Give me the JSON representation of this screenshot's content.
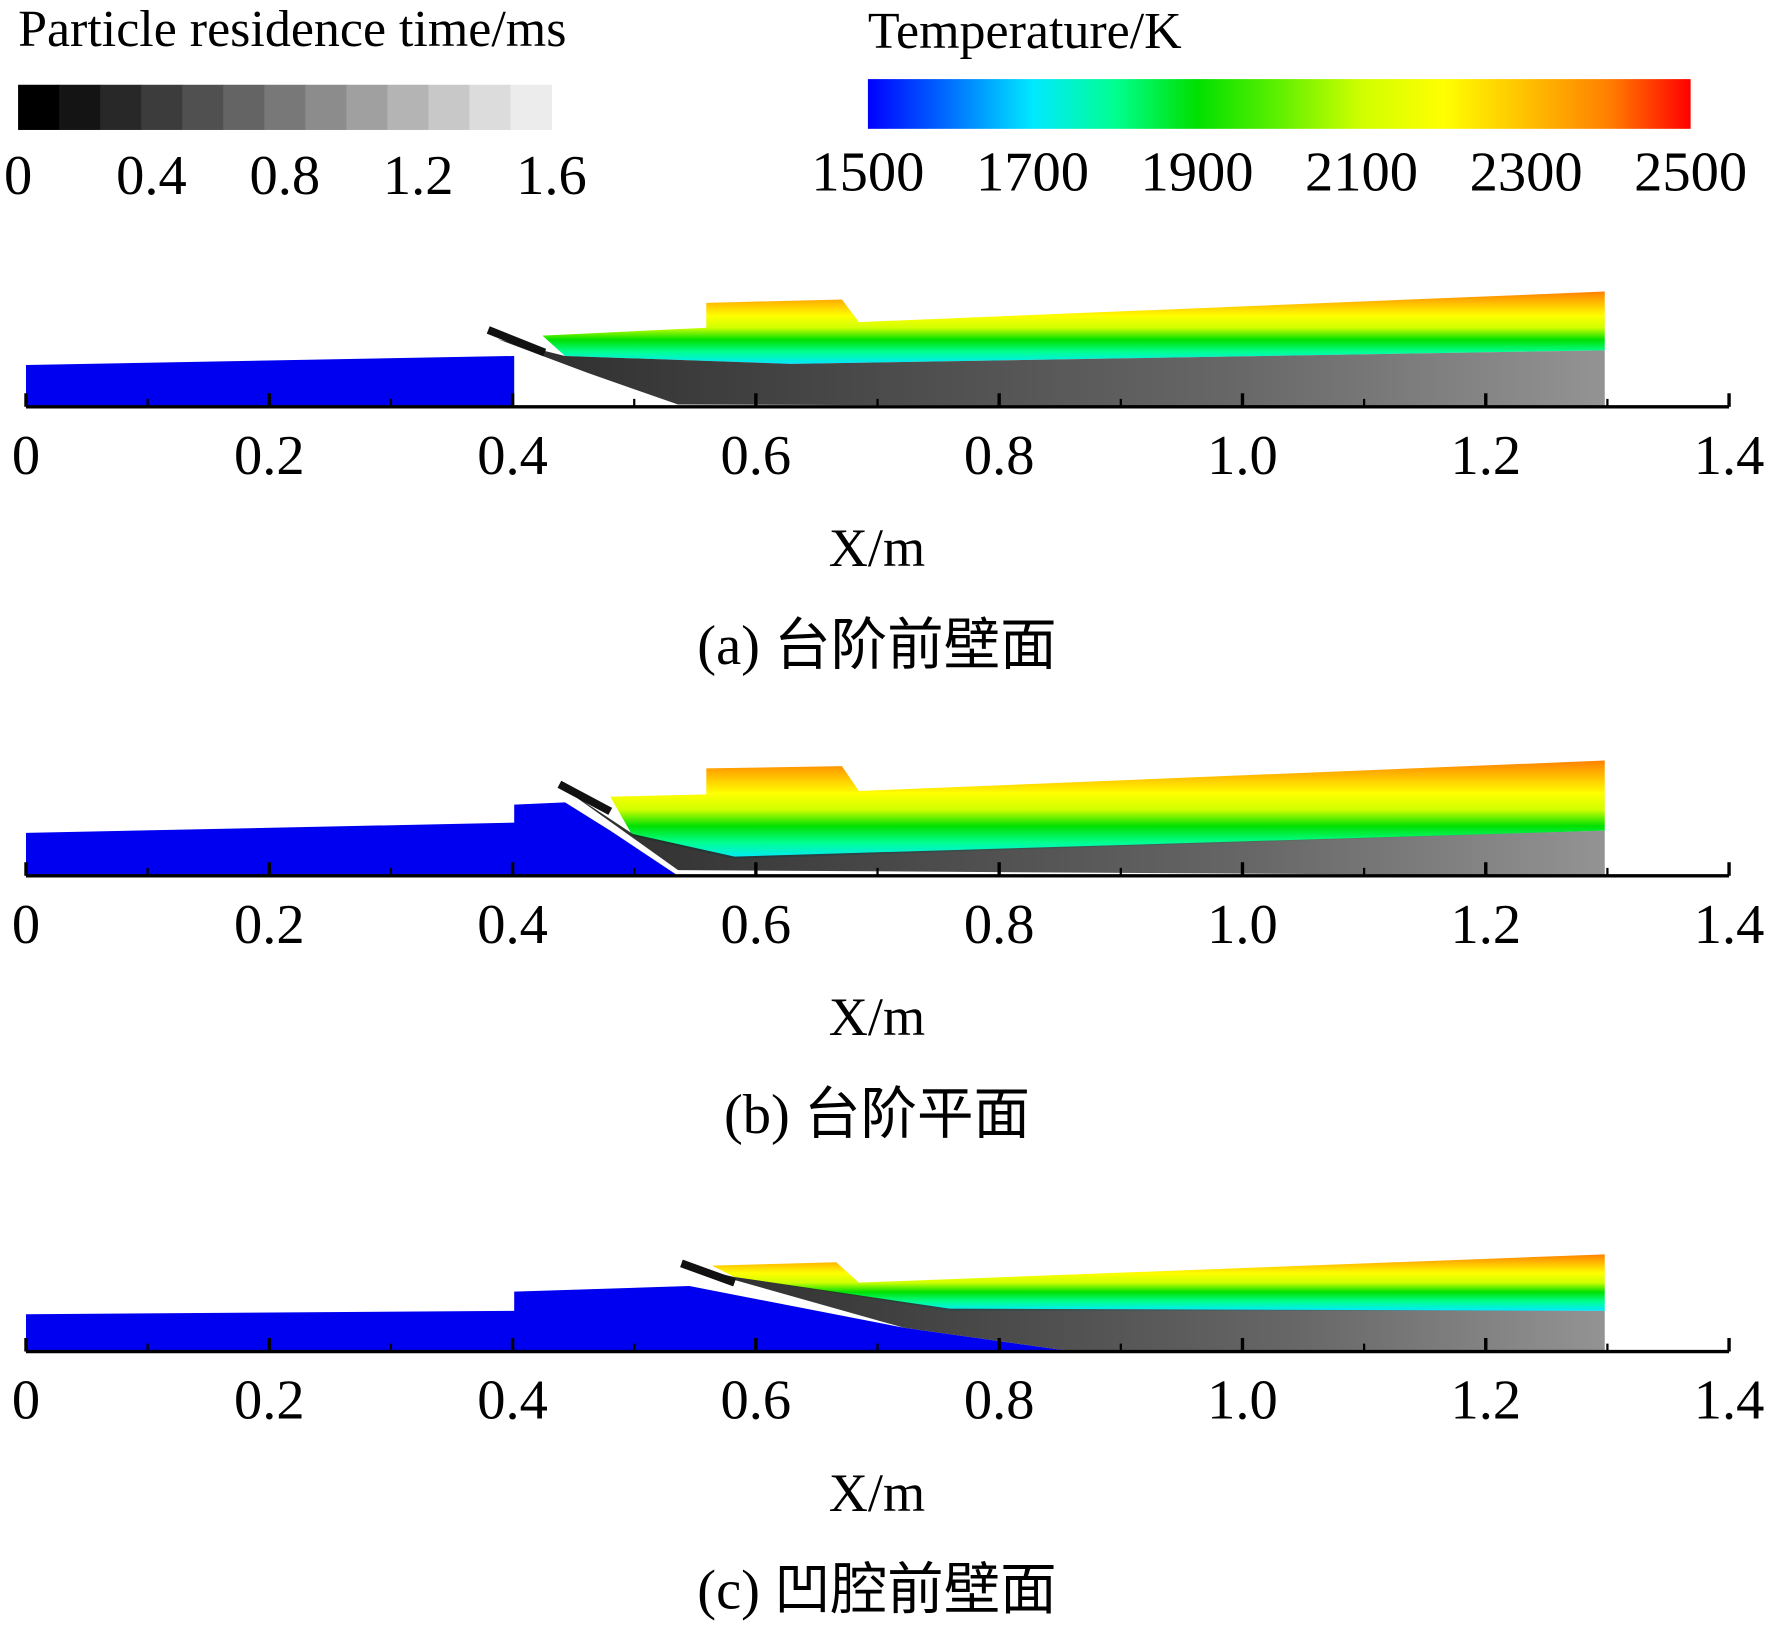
{
  "colorbars": [
    {
      "title": "Particle residence time/ms",
      "lim": [
        0,
        1.6
      ],
      "ticks": [
        0,
        0.4,
        0.8,
        1.2,
        1.6
      ],
      "colors": [
        "#000000",
        "#141414",
        "#282828",
        "#3c3c3c",
        "#505050",
        "#646464",
        "#787878",
        "#8c8c8c",
        "#a0a0a0",
        "#b4b4b4",
        "#c8c8c8",
        "#dcdcdc",
        "#ececec"
      ]
    },
    {
      "title": "Temperature/K",
      "lim": [
        1500,
        2500
      ],
      "ticks": [
        1500,
        1700,
        1900,
        2100,
        2300,
        2500
      ],
      "colors": [
        "#0000ff",
        "#0070ff",
        "#00e8ff",
        "#00ff90",
        "#00e000",
        "#60f000",
        "#d0ff00",
        "#ffff00",
        "#ffc000",
        "#ff8000",
        "#ff0000"
      ]
    }
  ],
  "chart_data": [
    {
      "type": "contour",
      "caption": "(a) 台阶前壁面",
      "xlabel": "X/m",
      "xlim": [
        0,
        1.4
      ],
      "xticks": [
        0,
        0.2,
        0.4,
        0.6,
        0.8,
        {
          "value": 1,
          "label": "1.0"
        },
        1.2,
        1.4
      ]
    },
    {
      "type": "contour",
      "caption": "(b) 台阶平面",
      "xlabel": "X/m",
      "xlim": [
        0,
        1.4
      ],
      "xticks": [
        0,
        0.2,
        0.4,
        0.6,
        0.8,
        {
          "value": 1,
          "label": "1.0"
        },
        1.2,
        1.4
      ]
    },
    {
      "type": "contour",
      "caption": "(c) 凹腔前壁面",
      "xlabel": "X/m",
      "xlim": [
        0,
        1.4
      ],
      "xticks": [
        0,
        0.2,
        0.4,
        0.6,
        0.8,
        {
          "value": 1,
          "label": "1.0"
        },
        1.2,
        1.4
      ]
    }
  ]
}
